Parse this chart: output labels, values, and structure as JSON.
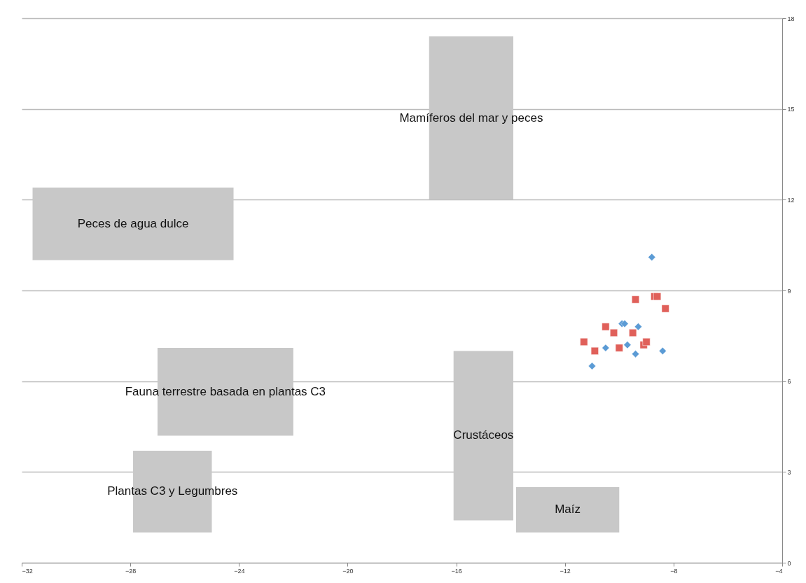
{
  "chart_data": {
    "type": "scatter",
    "xlim": [
      -32,
      -4
    ],
    "xticks": [
      -32,
      -28,
      -24,
      -20,
      -16,
      -12,
      -8,
      -4
    ],
    "ylim": [
      0,
      18
    ],
    "yticks": [
      0,
      3,
      6,
      9,
      12,
      15,
      18
    ],
    "grid": "y",
    "annotations": [
      "Mamíferos del mar y peces",
      "Peces de agua dulce",
      "Fauna terrestre basada en plantas C3",
      "Plantas C3 y Legumbres",
      "Crustáceos",
      "Maíz"
    ],
    "series": [
      {
        "type": "line",
        "color": "#c8c8c8",
        "x": [
          -17,
          -13.9
        ],
        "values": [
          null,
          null
        ],
        "lower": [
          12,
          12
        ],
        "upper": [
          17.4,
          17.4
        ]
      },
      {
        "type": "line",
        "color": "#c8c8c8",
        "x": [
          -31.6,
          -24.2
        ],
        "values": [
          null,
          null
        ],
        "lower": [
          10,
          10
        ],
        "upper": [
          12.4,
          12.4
        ]
      },
      {
        "type": "line",
        "color": "#c8c8c8",
        "x": [
          -27,
          -22
        ],
        "values": [
          null,
          null
        ],
        "lower": [
          4.2,
          4.2
        ],
        "upper": [
          7.1,
          7.1
        ]
      },
      {
        "type": "line",
        "color": "#c8c8c8",
        "x": [
          -27.9,
          -25
        ],
        "values": [
          null,
          null
        ],
        "lower": [
          1,
          1
        ],
        "upper": [
          3.7,
          3.7
        ]
      },
      {
        "type": "line",
        "color": "#c8c8c8",
        "x": [
          -16.1,
          -13.9
        ],
        "values": [
          null,
          null
        ],
        "lower": [
          1.4,
          1.4
        ],
        "upper": [
          7,
          7
        ]
      },
      {
        "type": "line",
        "color": "#c8c8c8",
        "x": [
          -13.8,
          -10
        ],
        "values": [
          null,
          null
        ],
        "lower": [
          1,
          1
        ],
        "upper": [
          2.5,
          2.5
        ]
      },
      {
        "marker": "square",
        "color": "#e0605a",
        "x": [
          -9.4,
          -8.7,
          -8.6,
          -8.3,
          -10.5,
          -10.2,
          -9.5,
          -11.3,
          -10.9,
          -10.0,
          -9.1,
          -9.0
        ],
        "values": [
          8.7,
          8.8,
          8.8,
          8.4,
          7.8,
          7.6,
          7.6,
          7.3,
          7.0,
          7.1,
          7.2,
          7.3
        ]
      },
      {
        "marker": "diamond",
        "color": "#5b9bd5",
        "x": [
          -8.8,
          -9.9,
          -9.8,
          -9.3,
          -10.5,
          -9.7,
          -9.4,
          -8.4,
          -11.0
        ],
        "values": [
          10.1,
          7.9,
          7.9,
          7.8,
          7.1,
          7.2,
          6.9,
          7.0,
          6.5
        ]
      }
    ]
  }
}
